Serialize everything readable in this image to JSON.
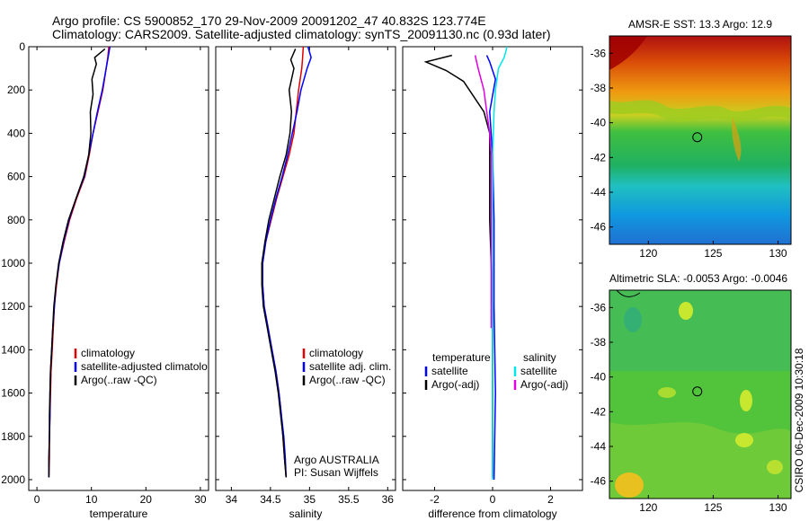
{
  "header": {
    "line1": "Argo profile: CS 5900852_170 29-Nov-2009 20091202_47 40.832S 123.774E",
    "line2": "Climatology: CARS2009. Satellite-adjusted climatology: synTS_20091130.nc (0.93d later)"
  },
  "side_label": "CSIRO 06-Dec-2009 10:30:18",
  "chart_data": [
    {
      "id": "temperature",
      "type": "line",
      "xlabel": "temperature",
      "ylabel": "",
      "xlim": [
        -1.5,
        31.5
      ],
      "ylim": [
        2050,
        0
      ],
      "x_ticks": [
        "0",
        "10",
        "20",
        "30"
      ],
      "y_ticks": [
        "0",
        "200",
        "400",
        "600",
        "800",
        "1000",
        "1200",
        "1400",
        "1600",
        "1800",
        "2000"
      ],
      "legend": [
        "climatology",
        "satellite-adjusted climatolo",
        "Argo(..raw -QC)"
      ],
      "legend_colors": [
        "#e00000",
        "#0000ff",
        "#000000"
      ],
      "series": [
        {
          "name": "climatology",
          "color": "#e00000",
          "points": [
            [
              13.2,
              0
            ],
            [
              13.0,
              50
            ],
            [
              12.7,
              100
            ],
            [
              12.1,
              200
            ],
            [
              11.2,
              300
            ],
            [
              10.3,
              400
            ],
            [
              9.6,
              500
            ],
            [
              8.8,
              600
            ],
            [
              7.3,
              700
            ],
            [
              6.0,
              800
            ],
            [
              5.0,
              900
            ],
            [
              4.1,
              1000
            ],
            [
              3.6,
              1100
            ],
            [
              3.2,
              1200
            ],
            [
              3.0,
              1300
            ],
            [
              2.8,
              1400
            ],
            [
              2.6,
              1500
            ],
            [
              2.5,
              1600
            ],
            [
              2.4,
              1700
            ],
            [
              2.3,
              1800
            ],
            [
              2.3,
              1900
            ],
            [
              2.2,
              1980
            ]
          ]
        },
        {
          "name": "satellite-adjusted climatolo",
          "color": "#0000ff",
          "points": [
            [
              13.4,
              0
            ],
            [
              13.2,
              30
            ],
            [
              12.7,
              100
            ],
            [
              12.0,
              200
            ],
            [
              11.1,
              300
            ],
            [
              10.3,
              400
            ],
            [
              9.5,
              500
            ],
            [
              8.7,
              600
            ],
            [
              7.2,
              700
            ],
            [
              5.9,
              800
            ],
            [
              4.9,
              900
            ],
            [
              4.1,
              1000
            ],
            [
              3.5,
              1100
            ],
            [
              3.2,
              1200
            ],
            [
              2.9,
              1300
            ],
            [
              2.7,
              1400
            ],
            [
              2.5,
              1500
            ],
            [
              2.4,
              1600
            ],
            [
              2.4,
              1700
            ],
            [
              2.3,
              1800
            ],
            [
              2.2,
              1900
            ],
            [
              2.2,
              1990
            ]
          ]
        },
        {
          "name": "Argo(..raw -QC)",
          "color": "#000000",
          "points": [
            [
              12.5,
              10
            ],
            [
              10.6,
              50
            ],
            [
              10.9,
              80
            ],
            [
              10.1,
              150
            ],
            [
              10.3,
              220
            ],
            [
              9.8,
              300
            ],
            [
              9.9,
              400
            ],
            [
              9.5,
              500
            ],
            [
              8.6,
              600
            ],
            [
              7.2,
              700
            ],
            [
              5.8,
              800
            ],
            [
              4.8,
              900
            ],
            [
              4.0,
              1000
            ],
            [
              3.5,
              1100
            ],
            [
              3.1,
              1200
            ],
            [
              2.9,
              1300
            ],
            [
              2.7,
              1400
            ],
            [
              2.5,
              1500
            ],
            [
              2.4,
              1600
            ],
            [
              2.3,
              1700
            ],
            [
              2.3,
              1800
            ],
            [
              2.2,
              1900
            ],
            [
              2.2,
              1990
            ]
          ]
        }
      ]
    },
    {
      "id": "salinity",
      "type": "line",
      "xlabel": "salinity",
      "ylabel": "",
      "xlim": [
        33.8,
        36.1
      ],
      "ylim": [
        2050,
        0
      ],
      "x_ticks": [
        "34",
        "34.5",
        "35",
        "35.5",
        "36"
      ],
      "y_ticks": [],
      "legend": [
        "climatology",
        "satellite adj. clim.",
        "Argo(..raw -QC)"
      ],
      "legend_colors": [
        "#e00000",
        "#0000ff",
        "#000000"
      ],
      "annotation": [
        "Argo AUSTRALIA",
        "PI: Susan Wijffels"
      ],
      "series": [
        {
          "name": "climatology",
          "color": "#e00000",
          "points": [
            [
              34.92,
              0
            ],
            [
              34.91,
              60
            ],
            [
              34.9,
              100
            ],
            [
              34.86,
              200
            ],
            [
              34.83,
              300
            ],
            [
              34.8,
              400
            ],
            [
              34.74,
              500
            ],
            [
              34.66,
              600
            ],
            [
              34.58,
              700
            ],
            [
              34.51,
              800
            ],
            [
              34.44,
              900
            ],
            [
              34.4,
              1000
            ],
            [
              34.4,
              1100
            ],
            [
              34.42,
              1200
            ],
            [
              34.47,
              1300
            ],
            [
              34.52,
              1400
            ],
            [
              34.57,
              1500
            ],
            [
              34.61,
              1600
            ],
            [
              34.64,
              1700
            ],
            [
              34.66,
              1800
            ],
            [
              34.68,
              1900
            ],
            [
              34.7,
              1990
            ]
          ]
        },
        {
          "name": "satellite adj. clim.",
          "color": "#0000ff",
          "points": [
            [
              34.98,
              0
            ],
            [
              35.02,
              50
            ],
            [
              34.97,
              100
            ],
            [
              34.89,
              200
            ],
            [
              34.84,
              300
            ],
            [
              34.78,
              400
            ],
            [
              34.72,
              500
            ],
            [
              34.65,
              600
            ],
            [
              34.57,
              700
            ],
            [
              34.5,
              800
            ],
            [
              34.44,
              900
            ],
            [
              34.4,
              1000
            ],
            [
              34.4,
              1100
            ],
            [
              34.42,
              1200
            ],
            [
              34.47,
              1300
            ],
            [
              34.52,
              1400
            ],
            [
              34.57,
              1500
            ],
            [
              34.61,
              1600
            ],
            [
              34.64,
              1700
            ],
            [
              34.67,
              1800
            ],
            [
              34.69,
              1900
            ],
            [
              34.7,
              1990
            ]
          ]
        },
        {
          "name": "Argo(..raw -QC)",
          "color": "#000000",
          "points": [
            [
              34.82,
              10
            ],
            [
              34.76,
              60
            ],
            [
              34.8,
              100
            ],
            [
              34.74,
              200
            ],
            [
              34.77,
              300
            ],
            [
              34.75,
              400
            ],
            [
              34.7,
              500
            ],
            [
              34.62,
              600
            ],
            [
              34.55,
              700
            ],
            [
              34.48,
              800
            ],
            [
              34.43,
              900
            ],
            [
              34.39,
              1000
            ],
            [
              34.39,
              1100
            ],
            [
              34.41,
              1200
            ],
            [
              34.46,
              1300
            ],
            [
              34.51,
              1400
            ],
            [
              34.56,
              1500
            ],
            [
              34.6,
              1600
            ],
            [
              34.63,
              1700
            ],
            [
              34.66,
              1800
            ],
            [
              34.68,
              1900
            ],
            [
              34.7,
              1990
            ]
          ]
        }
      ]
    },
    {
      "id": "difference",
      "type": "line",
      "xlabel": "difference from climatology",
      "ylabel": "",
      "xlim": [
        -3.1,
        3.1
      ],
      "ylim": [
        2050,
        0
      ],
      "x_ticks": [
        "-2",
        "0",
        "2"
      ],
      "y_ticks": [],
      "legend_groups": [
        {
          "title": "temperature",
          "items": [
            "satellite",
            "Argo(-adj)"
          ],
          "colors": [
            "#0000ff",
            "#000000"
          ]
        },
        {
          "title": "salinity",
          "items": [
            "satellite",
            "Argo(-adj)"
          ],
          "colors": [
            "#00e5e5",
            "#e000e0"
          ]
        }
      ],
      "series": [
        {
          "name": "temperature satellite",
          "color": "#0000ff",
          "points": [
            [
              -0.2,
              40
            ],
            [
              -0.1,
              70
            ],
            [
              0.1,
              150
            ],
            [
              -0.1,
              300
            ],
            [
              0.0,
              500
            ],
            [
              0.05,
              800
            ],
            [
              0.05,
              1200
            ],
            [
              0.1,
              1600
            ],
            [
              0.05,
              2000
            ]
          ]
        },
        {
          "name": "temperature Argo(-adj)",
          "color": "#000000",
          "points": [
            [
              -1.4,
              40
            ],
            [
              -2.3,
              70
            ],
            [
              -1.6,
              110
            ],
            [
              -1.0,
              160
            ],
            [
              -0.3,
              300
            ],
            [
              -0.1,
              400
            ],
            [
              -0.1,
              500
            ],
            [
              -0.1,
              800
            ],
            [
              0.0,
              1200
            ],
            [
              0.0,
              1600
            ],
            [
              0.0,
              1990
            ]
          ]
        },
        {
          "name": "salinity satellite",
          "color": "#00e5e5",
          "points": [
            [
              0.5,
              0
            ],
            [
              0.4,
              50
            ],
            [
              0.2,
              100
            ],
            [
              0.1,
              200
            ],
            [
              0.05,
              300
            ],
            [
              0.0,
              500
            ],
            [
              0.0,
              700
            ],
            [
              0.0,
              1000
            ],
            [
              0.0,
              1500
            ],
            [
              0.0,
              2000
            ]
          ]
        },
        {
          "name": "salinity Argo(-adj)",
          "color": "#e000e0",
          "points": [
            [
              -0.6,
              40
            ],
            [
              -0.5,
              100
            ],
            [
              -0.3,
              200
            ],
            [
              -0.2,
              300
            ],
            [
              -0.1,
              400
            ],
            [
              -0.05,
              500
            ],
            [
              -0.05,
              700
            ],
            [
              -0.05,
              1000
            ],
            [
              -0.05,
              1300
            ]
          ]
        }
      ]
    },
    {
      "id": "sst_map",
      "type": "heatmap",
      "title": "AMSR-E SST: 13.3 Argo: 12.9",
      "xlim": [
        117,
        131
      ],
      "ylim": [
        -47,
        -35
      ],
      "x_ticks": [
        "120",
        "125",
        "130"
      ],
      "y_ticks": [
        "-36",
        "-38",
        "-40",
        "-42",
        "-44",
        "-46"
      ],
      "marker": [
        123.774,
        -40.832
      ]
    },
    {
      "id": "sla_map",
      "type": "heatmap",
      "title": "Altimetric SLA: -0.0053 Argo: -0.0046",
      "xlim": [
        117,
        131
      ],
      "ylim": [
        -47,
        -35
      ],
      "x_ticks": [
        "120",
        "125",
        "130"
      ],
      "y_ticks": [
        "-36",
        "-38",
        "-40",
        "-42",
        "-44",
        "-46"
      ],
      "marker": [
        123.774,
        -40.832
      ]
    }
  ]
}
